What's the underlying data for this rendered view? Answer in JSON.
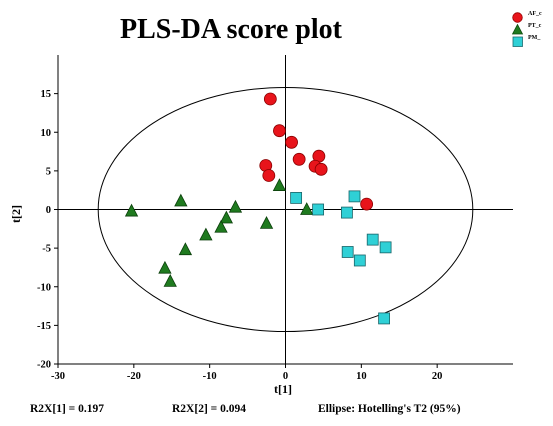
{
  "chart_data": {
    "type": "scatter",
    "title": "PLS-DA score plot",
    "xlabel": "t[1]",
    "ylabel": "t[2]",
    "xlim": [
      -30,
      30
    ],
    "ylim": [
      -20,
      20
    ],
    "xticks": [
      -30,
      -20,
      -10,
      0,
      10,
      20
    ],
    "yticks": [
      -20,
      -15,
      -10,
      -5,
      0,
      5,
      10,
      15
    ],
    "grid": false,
    "legend_position": "top-right",
    "series": [
      {
        "name": "AF_c",
        "marker": "circle",
        "color": "#e8141b",
        "points": [
          {
            "x": -2,
            "y": 14.3
          },
          {
            "x": -0.8,
            "y": 10.2
          },
          {
            "x": 0.8,
            "y": 8.7
          },
          {
            "x": -2.6,
            "y": 5.7
          },
          {
            "x": -2.2,
            "y": 4.4
          },
          {
            "x": 1.8,
            "y": 6.5
          },
          {
            "x": 4.4,
            "y": 6.9
          },
          {
            "x": 3.9,
            "y": 5.6
          },
          {
            "x": 4.7,
            "y": 5.2
          },
          {
            "x": 10.7,
            "y": 0.7
          }
        ]
      },
      {
        "name": "PT_c",
        "marker": "triangle",
        "color": "#1f7a1f",
        "points": [
          {
            "x": -20.3,
            "y": -0.2
          },
          {
            "x": -13.8,
            "y": 1.1
          },
          {
            "x": -0.8,
            "y": 3.1
          },
          {
            "x": -6.6,
            "y": 0.3
          },
          {
            "x": -7.8,
            "y": -1.1
          },
          {
            "x": -8.5,
            "y": -2.3
          },
          {
            "x": -10.5,
            "y": -3.3
          },
          {
            "x": -13.2,
            "y": -5.2
          },
          {
            "x": -15.9,
            "y": -7.6
          },
          {
            "x": -15.2,
            "y": -9.3
          },
          {
            "x": -2.5,
            "y": -1.8
          },
          {
            "x": 2.8,
            "y": 0
          }
        ]
      },
      {
        "name": "PM_",
        "marker": "square",
        "color": "#2fd0d6",
        "points": [
          {
            "x": 1.4,
            "y": 1.5
          },
          {
            "x": 4.3,
            "y": 0
          },
          {
            "x": 8.1,
            "y": -0.4
          },
          {
            "x": 9.1,
            "y": 1.7
          },
          {
            "x": 11.5,
            "y": -3.9
          },
          {
            "x": 13.2,
            "y": -4.9
          },
          {
            "x": 8.2,
            "y": -5.5
          },
          {
            "x": 9.8,
            "y": -6.6
          },
          {
            "x": 13,
            "y": -14.1
          }
        ]
      }
    ],
    "ellipse": {
      "label": "Hotelling's T2 (95%)",
      "cx": 0,
      "cy": 0,
      "rx": 24.7,
      "ry": 15.8
    }
  },
  "footer": {
    "r2x1": "R2X[1] = 0.197",
    "r2x2": "R2X[2] = 0.094",
    "ellipse": "Ellipse: Hotelling's T2 (95%)"
  }
}
